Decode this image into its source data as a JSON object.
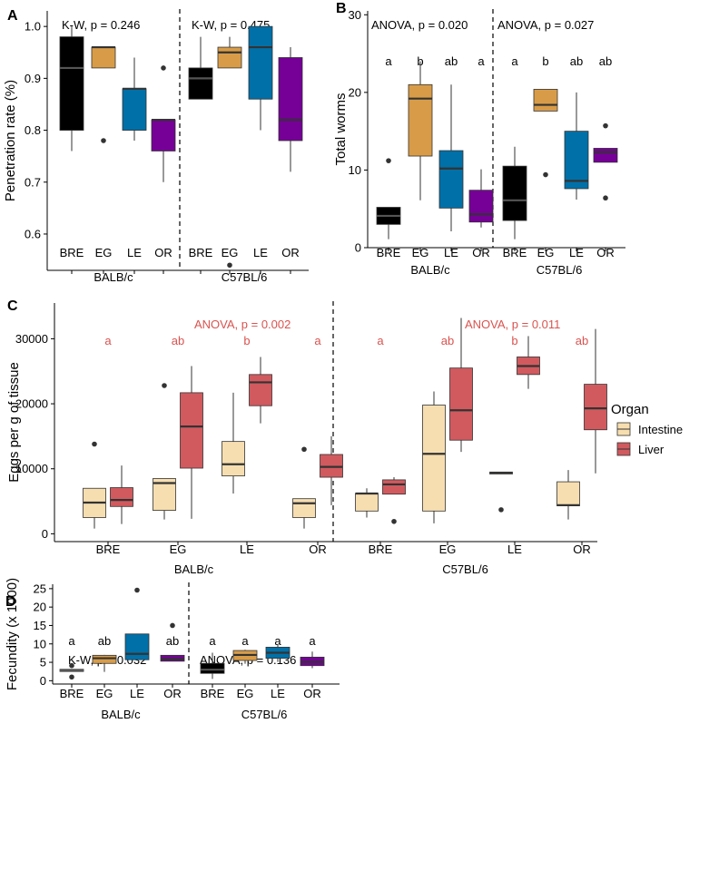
{
  "colors": {
    "BRE": "#000000",
    "EG": "#d89c48",
    "LE": "#0070a8",
    "OR": "#760097",
    "Intestine": "#f7deb0",
    "Liver": "#d15a5f",
    "annotation_red": "#d9534f",
    "median": "#333333"
  },
  "chart_data": [
    {
      "id": "A",
      "panel_label": "A",
      "type": "box",
      "ylabel": "Penetration rate (%)",
      "ylim": [
        0.53,
        1.03
      ],
      "yticks": [
        0.6,
        0.7,
        0.8,
        0.9,
        1.0
      ],
      "ytick_labels": [
        "0.6",
        "0.7",
        "0.8",
        "0.9",
        "1.0"
      ],
      "groups": [
        {
          "name": "BALB/c",
          "annotation": "K-W, p = 0.246",
          "letters": [],
          "categories": [
            "BRE",
            "EG",
            "LE",
            "OR"
          ],
          "boxes": [
            {
              "cat": "BRE",
              "q1": 0.8,
              "median": 0.92,
              "q3": 0.98,
              "lo": 0.76,
              "hi": 1.0,
              "outliers": []
            },
            {
              "cat": "EG",
              "q1": 0.92,
              "median": 0.96,
              "q3": 0.96,
              "lo": 0.92,
              "hi": 0.96,
              "outliers": [
                0.78
              ]
            },
            {
              "cat": "LE",
              "q1": 0.8,
              "median": 0.88,
              "q3": 0.88,
              "lo": 0.78,
              "hi": 0.94,
              "outliers": []
            },
            {
              "cat": "OR",
              "q1": 0.76,
              "median": 0.82,
              "q3": 0.82,
              "lo": 0.7,
              "hi": 0.82,
              "outliers": [
                0.92
              ]
            }
          ]
        },
        {
          "name": "C57BL/6",
          "annotation": "K-W, p = 0.475",
          "letters": [],
          "categories": [
            "BRE",
            "EG",
            "LE",
            "OR"
          ],
          "boxes": [
            {
              "cat": "BRE",
              "q1": 0.86,
              "median": 0.9,
              "q3": 0.92,
              "lo": 0.86,
              "hi": 0.98,
              "outliers": []
            },
            {
              "cat": "EG",
              "q1": 0.92,
              "median": 0.95,
              "q3": 0.96,
              "lo": 0.92,
              "hi": 0.98,
              "outliers": [
                0.54
              ]
            },
            {
              "cat": "LE",
              "q1": 0.86,
              "median": 0.96,
              "q3": 1.0,
              "lo": 0.8,
              "hi": 1.0,
              "outliers": []
            },
            {
              "cat": "OR",
              "q1": 0.78,
              "median": 0.82,
              "q3": 0.94,
              "lo": 0.72,
              "hi": 0.96,
              "outliers": []
            }
          ]
        }
      ]
    },
    {
      "id": "B",
      "panel_label": "B",
      "type": "box",
      "ylabel": "Total worms",
      "ylim": [
        0,
        30.5
      ],
      "yticks": [
        0,
        10,
        20,
        30
      ],
      "ytick_labels": [
        "0",
        "10",
        "20",
        "30"
      ],
      "groups": [
        {
          "name": "BALB/c",
          "annotation": "ANOVA, p = 0.020",
          "letters": [
            "a",
            "b",
            "ab",
            "a"
          ],
          "letter_value": 28.5,
          "categories": [
            "BRE",
            "EG",
            "LE",
            "OR"
          ],
          "boxes": [
            {
              "cat": "BRE",
              "q1": 3.0,
              "median": 4.1,
              "q3": 5.2,
              "lo": 1.1,
              "hi": 5.2,
              "outliers": [
                11.2
              ]
            },
            {
              "cat": "EG",
              "q1": 11.8,
              "median": 19.2,
              "q3": 21.0,
              "lo": 6.1,
              "hi": 24.0,
              "outliers": []
            },
            {
              "cat": "LE",
              "q1": 5.1,
              "median": 10.2,
              "q3": 12.5,
              "lo": 2.1,
              "hi": 21.0,
              "outliers": []
            },
            {
              "cat": "OR",
              "q1": 3.3,
              "median": 4.3,
              "q3": 7.4,
              "lo": 2.6,
              "hi": 10.1,
              "outliers": []
            }
          ]
        },
        {
          "name": "C57BL/6",
          "annotation": "ANOVA, p = 0.027",
          "letters": [
            "a",
            "b",
            "ab",
            "ab"
          ],
          "letter_value": 28.5,
          "categories": [
            "BRE",
            "EG",
            "LE",
            "OR"
          ],
          "boxes": [
            {
              "cat": "BRE",
              "q1": 3.5,
              "median": 6.1,
              "q3": 10.5,
              "lo": 1.1,
              "hi": 13.0,
              "outliers": []
            },
            {
              "cat": "EG",
              "q1": 17.6,
              "median": 18.4,
              "q3": 20.4,
              "lo": 17.6,
              "hi": 20.4,
              "outliers": [
                9.4
              ]
            },
            {
              "cat": "LE",
              "q1": 7.6,
              "median": 8.6,
              "q3": 15.0,
              "lo": 6.2,
              "hi": 20.0,
              "outliers": []
            },
            {
              "cat": "OR",
              "q1": 11.0,
              "median": 12.3,
              "q3": 12.8,
              "lo": 11.0,
              "hi": 12.8,
              "outliers": [
                15.7,
                6.4
              ]
            }
          ]
        }
      ]
    },
    {
      "id": "C",
      "panel_label": "C",
      "type": "grouped-box",
      "ylabel": "Eggs per g of tissue",
      "ylim": [
        -1200,
        35500
      ],
      "yticks": [
        0,
        10000,
        20000,
        30000
      ],
      "ytick_labels": [
        "0",
        "10000",
        "20000",
        "30000"
      ],
      "legend": {
        "title": "Organ",
        "entries": [
          "Intestine",
          "Liver"
        ],
        "placement": "right"
      },
      "groups": [
        {
          "name": "BALB/c",
          "annotation": "ANOVA, p = 0.002",
          "letters": [
            "a",
            "ab",
            "b",
            "a"
          ],
          "letter_value": 29800,
          "categories": [
            "BRE",
            "EG",
            "LE",
            "OR"
          ],
          "boxes": [
            {
              "cat": "BRE",
              "series": "Intestine",
              "q1": 2500,
              "median": 4800,
              "q3": 7000,
              "lo": 800,
              "hi": 7000,
              "outliers": [
                13800
              ]
            },
            {
              "cat": "BRE",
              "series": "Liver",
              "q1": 4200,
              "median": 5200,
              "q3": 7100,
              "lo": 1500,
              "hi": 10500,
              "outliers": []
            },
            {
              "cat": "EG",
              "series": "Intestine",
              "q1": 3600,
              "median": 7800,
              "q3": 8500,
              "lo": 2200,
              "hi": 8500,
              "outliers": [
                22800
              ]
            },
            {
              "cat": "EG",
              "series": "Liver",
              "q1": 10100,
              "median": 16500,
              "q3": 21700,
              "lo": 2300,
              "hi": 25800,
              "outliers": []
            },
            {
              "cat": "LE",
              "series": "Intestine",
              "q1": 8900,
              "median": 10700,
              "q3": 14200,
              "lo": 6200,
              "hi": 21700,
              "outliers": []
            },
            {
              "cat": "LE",
              "series": "Liver",
              "q1": 19700,
              "median": 23300,
              "q3": 24500,
              "lo": 17000,
              "hi": 27200,
              "outliers": []
            },
            {
              "cat": "OR",
              "series": "Intestine",
              "q1": 2500,
              "median": 4700,
              "q3": 5400,
              "lo": 800,
              "hi": 5400,
              "outliers": [
                13000
              ]
            },
            {
              "cat": "OR",
              "series": "Liver",
              "q1": 8700,
              "median": 10300,
              "q3": 12200,
              "lo": 4400,
              "hi": 15000,
              "outliers": []
            }
          ]
        },
        {
          "name": "C57BL/6",
          "annotation": "ANOVA, p = 0.011",
          "letters": [
            "a",
            "ab",
            "b",
            "ab"
          ],
          "letter_value": 29800,
          "categories": [
            "BRE",
            "EG",
            "LE",
            "OR"
          ],
          "boxes": [
            {
              "cat": "BRE",
              "series": "Intestine",
              "q1": 3500,
              "median": 6200,
              "q3": 6200,
              "lo": 2500,
              "hi": 7000,
              "outliers": []
            },
            {
              "cat": "BRE",
              "series": "Liver",
              "q1": 6100,
              "median": 7600,
              "q3": 8300,
              "lo": 6100,
              "hi": 8700,
              "outliers": [
                1900
              ]
            },
            {
              "cat": "EG",
              "series": "Intestine",
              "q1": 3500,
              "median": 12300,
              "q3": 19800,
              "lo": 1600,
              "hi": 21900,
              "outliers": []
            },
            {
              "cat": "EG",
              "series": "Liver",
              "q1": 14400,
              "median": 19000,
              "q3": 25500,
              "lo": 12600,
              "hi": 33200,
              "outliers": []
            },
            {
              "cat": "LE",
              "series": "Intestine",
              "q1": 9200,
              "median": 9400,
              "q3": 9500,
              "lo": 9200,
              "hi": 9500,
              "outliers": [
                3700
              ]
            },
            {
              "cat": "LE",
              "series": "Liver",
              "q1": 24500,
              "median": 25800,
              "q3": 27200,
              "lo": 22300,
              "hi": 30400,
              "outliers": []
            },
            {
              "cat": "OR",
              "series": "Intestine",
              "q1": 4300,
              "median": 4400,
              "q3": 8000,
              "lo": 2200,
              "hi": 9800,
              "outliers": []
            },
            {
              "cat": "OR",
              "series": "Liver",
              "q1": 16000,
              "median": 19300,
              "q3": 23000,
              "lo": 9300,
              "hi": 31500,
              "outliers": []
            }
          ]
        }
      ]
    },
    {
      "id": "D",
      "panel_label": "D",
      "type": "box",
      "ylabel": "Fecundity (x 1000)",
      "ylim": [
        -0.9,
        26.2
      ],
      "yticks": [
        0,
        5,
        10,
        15,
        20,
        25
      ],
      "ytick_labels": [
        "0",
        "5",
        "10",
        "15",
        "20",
        "25"
      ],
      "groups": [
        {
          "name": "BALB/c",
          "annotation": "K-W, p = 0.032",
          "letters": [
            "a",
            "ab",
            "b",
            "ab"
          ],
          "letter_value": 16,
          "categories": [
            "BRE",
            "EG",
            "LE",
            "OR"
          ],
          "boxes": [
            {
              "cat": "BRE",
              "q1": 2.5,
              "median": 2.8,
              "q3": 3.1,
              "lo": 2.5,
              "hi": 3.1,
              "outliers": [
                4.1,
                1.0
              ]
            },
            {
              "cat": "EG",
              "q1": 4.7,
              "median": 6.1,
              "q3": 6.9,
              "lo": 2.4,
              "hi": 7.0,
              "outliers": []
            },
            {
              "cat": "LE",
              "q1": 5.7,
              "median": 7.3,
              "q3": 12.7,
              "lo": 5.5,
              "hi": 12.7,
              "outliers": [
                24.6
              ]
            },
            {
              "cat": "OR",
              "q1": 5.3,
              "median": 5.9,
              "q3": 6.9,
              "lo": 5.3,
              "hi": 6.9,
              "outliers": [
                15.0
              ]
            }
          ]
        },
        {
          "name": "C57BL/6",
          "annotation": "ANOVA, p = 0.136",
          "letters": [
            "a",
            "a",
            "a",
            "a"
          ],
          "letter_value": 16,
          "categories": [
            "BRE",
            "EG",
            "LE",
            "OR"
          ],
          "boxes": [
            {
              "cat": "BRE",
              "q1": 2.0,
              "median": 3.0,
              "q3": 4.7,
              "lo": 0.5,
              "hi": 7.6,
              "outliers": []
            },
            {
              "cat": "EG",
              "q1": 5.5,
              "median": 7.0,
              "q3": 8.2,
              "lo": 4.6,
              "hi": 8.4,
              "outliers": []
            },
            {
              "cat": "LE",
              "q1": 6.1,
              "median": 7.6,
              "q3": 9.1,
              "lo": 5.1,
              "hi": 9.7,
              "outliers": []
            },
            {
              "cat": "OR",
              "q1": 4.1,
              "median": 5.1,
              "q3": 6.4,
              "lo": 3.4,
              "hi": 7.9,
              "outliers": []
            }
          ]
        }
      ]
    }
  ]
}
